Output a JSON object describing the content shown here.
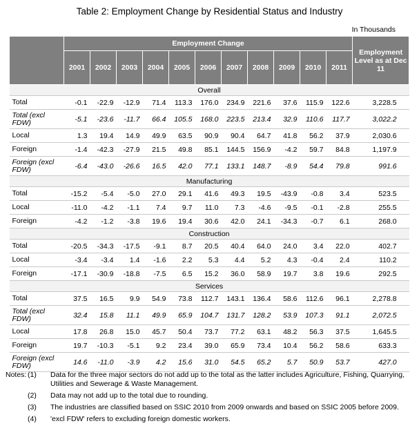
{
  "title": "Table 2: Employment Change by Residential Status and Industry",
  "unit": "In Thousands",
  "header": {
    "group": "Employment Change",
    "level": "Employment Level as at Dec 11",
    "years": [
      "2001",
      "2002",
      "2003",
      "2004",
      "2005",
      "2006",
      "2007",
      "2008",
      "2009",
      "2010",
      "2011"
    ]
  },
  "sections": [
    {
      "name": "Overall",
      "rows": [
        {
          "label": "Total",
          "italic": false,
          "values": [
            "-0.1",
            "-22.9",
            "-12.9",
            "71.4",
            "113.3",
            "176.0",
            "234.9",
            "221.6",
            "37.6",
            "115.9",
            "122.6",
            "3,228.5"
          ]
        },
        {
          "label": "Total (excl FDW)",
          "italic": true,
          "values": [
            "-5.1",
            "-23.6",
            "-11.7",
            "66.4",
            "105.5",
            "168.0",
            "223.5",
            "213.4",
            "32.9",
            "110.6",
            "117.7",
            "3,022.2"
          ]
        },
        {
          "label": "Local",
          "italic": false,
          "values": [
            "1.3",
            "19.4",
            "14.9",
            "49.9",
            "63.5",
            "90.9",
            "90.4",
            "64.7",
            "41.8",
            "56.2",
            "37.9",
            "2,030.6"
          ]
        },
        {
          "label": "Foreign",
          "italic": false,
          "values": [
            "-1.4",
            "-42.3",
            "-27.9",
            "21.5",
            "49.8",
            "85.1",
            "144.5",
            "156.9",
            "-4.2",
            "59.7",
            "84.8",
            "1,197.9"
          ]
        },
        {
          "label": "Foreign (excl FDW)",
          "italic": true,
          "values": [
            "-6.4",
            "-43.0",
            "-26.6",
            "16.5",
            "42.0",
            "77.1",
            "133.1",
            "148.7",
            "-8.9",
            "54.4",
            "79.8",
            "991.6"
          ]
        }
      ]
    },
    {
      "name": "Manufacturing",
      "rows": [
        {
          "label": "Total",
          "italic": false,
          "values": [
            "-15.2",
            "-5.4",
            "-5.0",
            "27.0",
            "29.1",
            "41.6",
            "49.3",
            "19.5",
            "-43.9",
            "-0.8",
            "3.4",
            "523.5"
          ]
        },
        {
          "label": "Local",
          "italic": false,
          "values": [
            "-11.0",
            "-4.2",
            "-1.1",
            "7.4",
            "9.7",
            "11.0",
            "7.3",
            "-4.6",
            "-9.5",
            "-0.1",
            "-2.8",
            "255.5"
          ]
        },
        {
          "label": "Foreign",
          "italic": false,
          "values": [
            "-4.2",
            "-1.2",
            "-3.8",
            "19.6",
            "19.4",
            "30.6",
            "42.0",
            "24.1",
            "-34.3",
            "-0.7",
            "6.1",
            "268.0"
          ]
        }
      ]
    },
    {
      "name": "Construction",
      "rows": [
        {
          "label": "Total",
          "italic": false,
          "values": [
            "-20.5",
            "-34.3",
            "-17.5",
            "-9.1",
            "8.7",
            "20.5",
            "40.4",
            "64.0",
            "24.0",
            "3.4",
            "22.0",
            "402.7"
          ]
        },
        {
          "label": "Local",
          "italic": false,
          "values": [
            "-3.4",
            "-3.4",
            "1.4",
            "-1.6",
            "2.2",
            "5.3",
            "4.4",
            "5.2",
            "4.3",
            "-0.4",
            "2.4",
            "110.2"
          ]
        },
        {
          "label": "Foreign",
          "italic": false,
          "values": [
            "-17.1",
            "-30.9",
            "-18.8",
            "-7.5",
            "6.5",
            "15.2",
            "36.0",
            "58.9",
            "19.7",
            "3.8",
            "19.6",
            "292.5"
          ]
        }
      ]
    },
    {
      "name": "Services",
      "rows": [
        {
          "label": "Total",
          "italic": false,
          "values": [
            "37.5",
            "16.5",
            "9.9",
            "54.9",
            "73.8",
            "112.7",
            "143.1",
            "136.4",
            "58.6",
            "112.6",
            "96.1",
            "2,278.8"
          ]
        },
        {
          "label": "Total (excl FDW)",
          "italic": true,
          "values": [
            "32.4",
            "15.8",
            "11.1",
            "49.9",
            "65.9",
            "104.7",
            "131.7",
            "128.2",
            "53.9",
            "107.3",
            "91.1",
            "2,072.5"
          ]
        },
        {
          "label": "Local",
          "italic": false,
          "values": [
            "17.8",
            "26.8",
            "15.0",
            "45.7",
            "50.4",
            "73.7",
            "77.2",
            "63.1",
            "48.2",
            "56.3",
            "37.5",
            "1,645.5"
          ]
        },
        {
          "label": "Foreign",
          "italic": false,
          "values": [
            "19.7",
            "-10.3",
            "-5.1",
            "9.2",
            "23.4",
            "39.0",
            "65.9",
            "73.4",
            "10.4",
            "56.2",
            "58.6",
            "633.3"
          ]
        },
        {
          "label": "Foreign (excl FDW)",
          "italic": true,
          "values": [
            "14.6",
            "-11.0",
            "-3.9",
            "4.2",
            "15.6",
            "31.0",
            "54.5",
            "65.2",
            "5.7",
            "50.9",
            "53.7",
            "427.0"
          ]
        }
      ]
    }
  ],
  "notes": {
    "label": "Notes:",
    "items": [
      {
        "num": "(1)",
        "text": "Data for the three major sectors do not add up to the total as the latter includes Agriculture, Fishing, Quarrying, Utilities and Sewerage & Waste Management."
      },
      {
        "num": "(2)",
        "text": "Data may not add up to the total due to rounding."
      },
      {
        "num": "(3)",
        "text": "The industries are classified based on SSIC 2010 from 2009 onwards and based on SSIC 2005 before 2009."
      },
      {
        "num": "(4)",
        "text": "'excl FDW' refers to excluding foreign domestic workers."
      }
    ]
  }
}
